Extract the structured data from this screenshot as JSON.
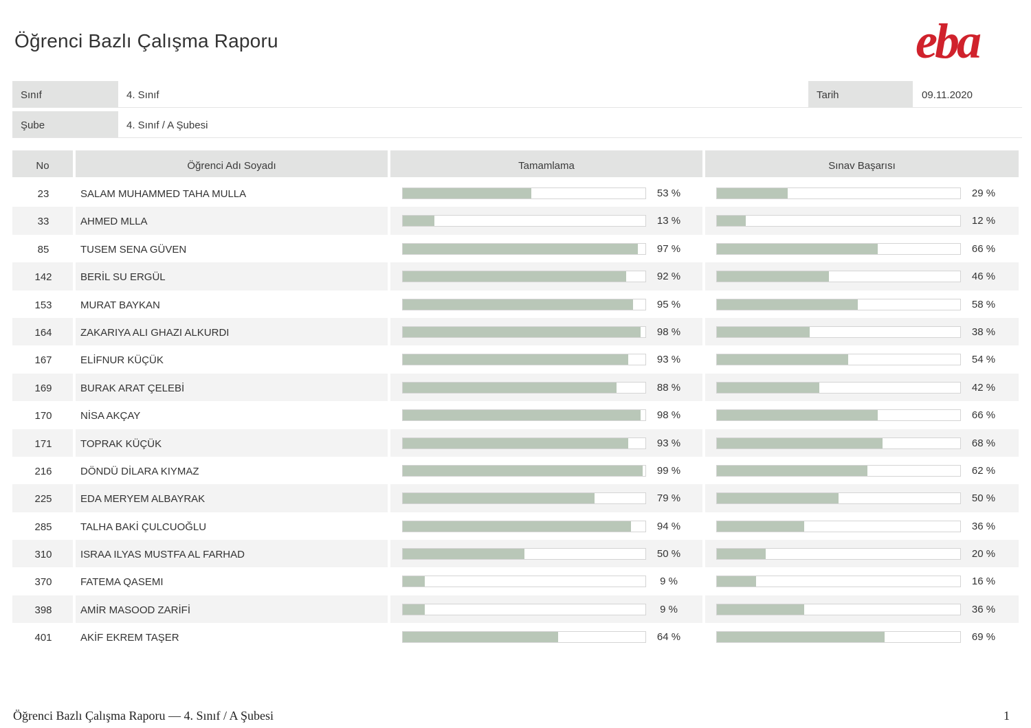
{
  "header": {
    "title": "Öğrenci Bazlı Çalışma Raporu",
    "logo_text": "eba"
  },
  "info": {
    "sinif_label": "Sınıf",
    "sinif_value": "4. Sınıf",
    "tarih_label": "Tarih",
    "tarih_value": "09.11.2020",
    "sube_label": "Şube",
    "sube_value": "4. Sınıf / A Şubesi"
  },
  "table": {
    "columns": [
      "No",
      "Öğrenci Adı Soyadı",
      "Tamamlama",
      "Sınav Başarısı"
    ],
    "rows": [
      {
        "no": "23",
        "name": "SALAM MUHAMMED TAHA MULLA",
        "completion": 53,
        "completion_label": "53 %",
        "exam": 29,
        "exam_label": "29 %"
      },
      {
        "no": "33",
        "name": "AHMED MLLA",
        "completion": 13,
        "completion_label": "13 %",
        "exam": 12,
        "exam_label": "12 %"
      },
      {
        "no": "85",
        "name": "TUSEM SENA GÜVEN",
        "completion": 97,
        "completion_label": "97 %",
        "exam": 66,
        "exam_label": "66 %"
      },
      {
        "no": "142",
        "name": "BERİL SU ERGÜL",
        "completion": 92,
        "completion_label": "92 %",
        "exam": 46,
        "exam_label": "46 %"
      },
      {
        "no": "153",
        "name": "MURAT BAYKAN",
        "completion": 95,
        "completion_label": "95 %",
        "exam": 58,
        "exam_label": "58 %"
      },
      {
        "no": "164",
        "name": "ZAKARIYA ALI GHAZI ALKURDI",
        "completion": 98,
        "completion_label": "98 %",
        "exam": 38,
        "exam_label": "38 %"
      },
      {
        "no": "167",
        "name": "ELİFNUR KÜÇÜK",
        "completion": 93,
        "completion_label": "93 %",
        "exam": 54,
        "exam_label": "54 %"
      },
      {
        "no": "169",
        "name": "BURAK ARAT ÇELEBİ",
        "completion": 88,
        "completion_label": "88 %",
        "exam": 42,
        "exam_label": "42 %"
      },
      {
        "no": "170",
        "name": "NİSA AKÇAY",
        "completion": 98,
        "completion_label": "98 %",
        "exam": 66,
        "exam_label": "66 %"
      },
      {
        "no": "171",
        "name": "TOPRAK KÜÇÜK",
        "completion": 93,
        "completion_label": "93 %",
        "exam": 68,
        "exam_label": "68 %"
      },
      {
        "no": "216",
        "name": "DÖNDÜ DİLARA KIYMAZ",
        "completion": 99,
        "completion_label": "99 %",
        "exam": 62,
        "exam_label": "62 %"
      },
      {
        "no": "225",
        "name": "EDA MERYEM ALBAYRAK",
        "completion": 79,
        "completion_label": "79 %",
        "exam": 50,
        "exam_label": "50 %"
      },
      {
        "no": "285",
        "name": "TALHA BAKİ ÇULCUOĞLU",
        "completion": 94,
        "completion_label": "94 %",
        "exam": 36,
        "exam_label": "36 %"
      },
      {
        "no": "310",
        "name": "ISRAA ILYAS MUSTFA AL FARHAD",
        "completion": 50,
        "completion_label": "50 %",
        "exam": 20,
        "exam_label": "20 %"
      },
      {
        "no": "370",
        "name": "FATEMA QASEMI",
        "completion": 9,
        "completion_label": "9 %",
        "exam": 16,
        "exam_label": "16 %"
      },
      {
        "no": "398",
        "name": "AMİR MASOOD ZARİFİ",
        "completion": 9,
        "completion_label": "9 %",
        "exam": 36,
        "exam_label": "36 %"
      },
      {
        "no": "401",
        "name": "AKİF EKREM TAŞER",
        "completion": 64,
        "completion_label": "64 %",
        "exam": 69,
        "exam_label": "69 %"
      }
    ]
  },
  "footer": {
    "text": "Öğrenci Bazlı Çalışma Raporu — 4. Sınıf / A Şubesi",
    "page": "1"
  },
  "colors": {
    "bar_fill": "#b9c7b8",
    "header_bg": "#e2e3e2",
    "alt_row": "#f3f3f3",
    "brand": "#d0222c"
  }
}
